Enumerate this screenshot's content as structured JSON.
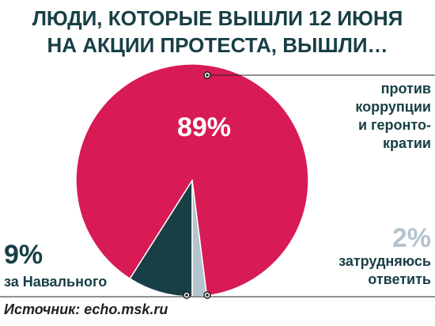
{
  "chart_data": {
    "type": "pie",
    "title": [
      "ЛЮДИ, КОТОРЫЕ ВЫШЛИ 12 ИЮНЯ",
      "НА АКЦИИ ПРОТЕСТА, ВЫШЛИ…"
    ],
    "categories": [
      [
        "за Навального"
      ],
      [
        "против",
        "коррупции",
        "и геронто-",
        "кратии"
      ],
      [
        "затрудняюсь",
        "ответить"
      ]
    ],
    "values": [
      9,
      89,
      2
    ],
    "value_labels": [
      "9%",
      "89%",
      "2%"
    ],
    "colors": [
      "#173f45",
      "#d81b55",
      "#b3c4cf"
    ],
    "source": "Источник: echo.msk.ru"
  }
}
